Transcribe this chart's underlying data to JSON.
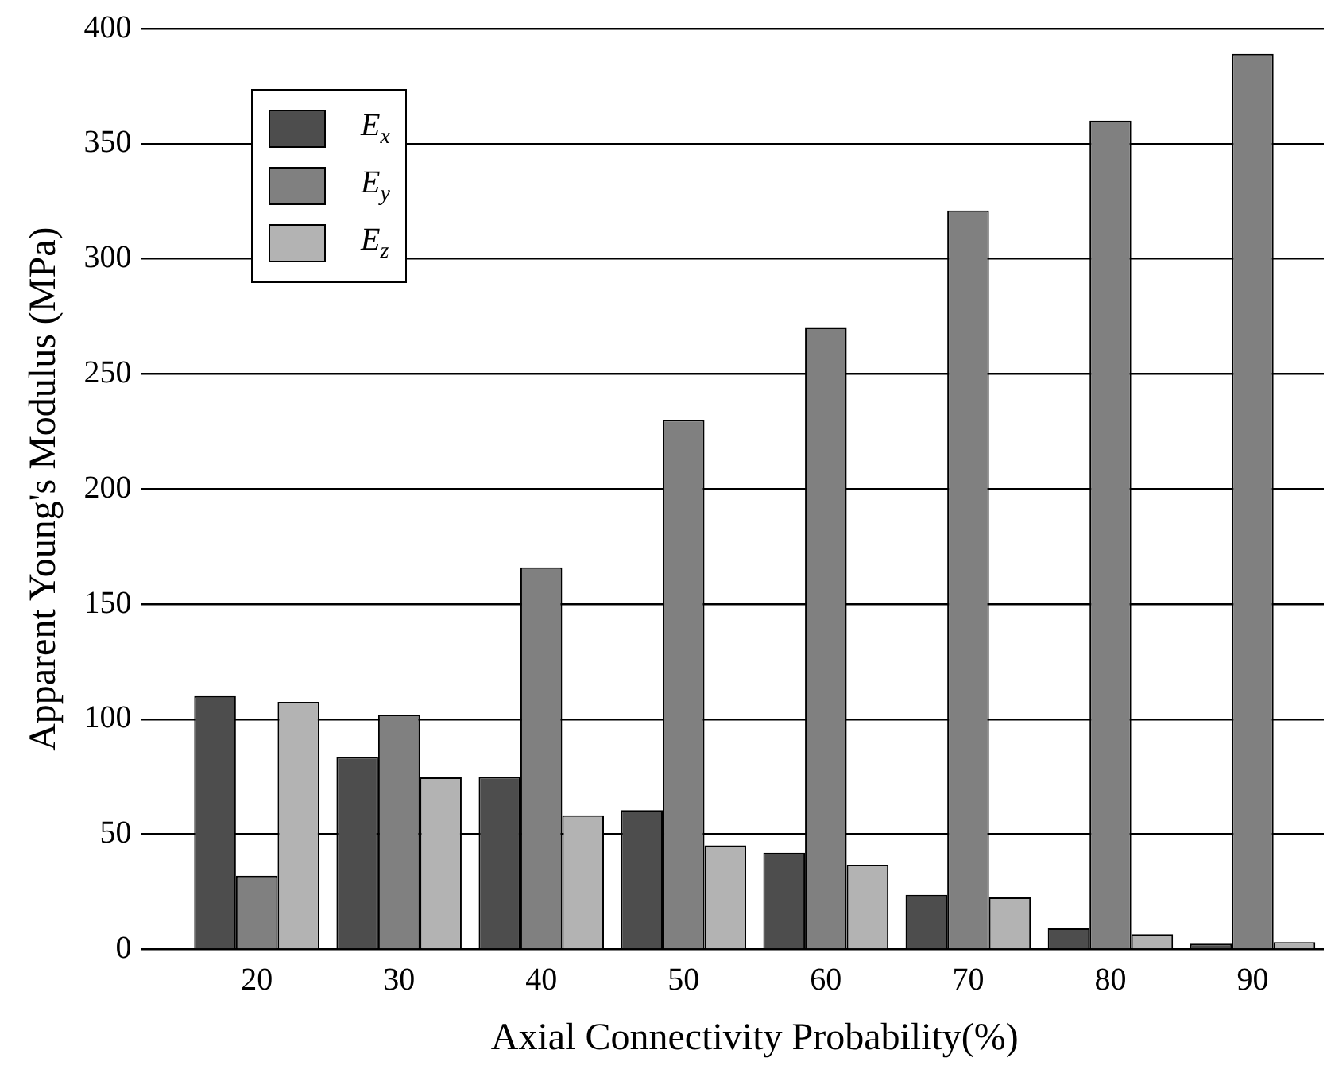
{
  "chart_data": {
    "type": "bar",
    "xlabel": "Axial Connectivity Probability(%)",
    "ylabel": "Apparent Young's Modulus (MPa)",
    "categories": [
      "20",
      "30",
      "40",
      "50",
      "60",
      "70",
      "80",
      "90"
    ],
    "series": [
      {
        "name": "E$_{x}$",
        "color": "#4d4d4d",
        "values": [
          110,
          83.6,
          75,
          60.5,
          42,
          23.7,
          9.1,
          2.5
        ]
      },
      {
        "name": "E$_{y}$",
        "color": "#808080",
        "values": [
          32,
          102,
          166,
          230,
          270,
          321,
          360,
          389
        ]
      },
      {
        "name": "E$_{z}$",
        "color": "#b3b3b3",
        "values": [
          107.5,
          74.7,
          58.2,
          45.2,
          36.7,
          22.6,
          6.6,
          3.2
        ]
      }
    ],
    "ylim": [
      0,
      400
    ],
    "yticks": [
      0,
      50,
      100,
      150,
      200,
      250,
      300,
      350,
      400
    ],
    "grid": "y",
    "legend": "top left"
  }
}
